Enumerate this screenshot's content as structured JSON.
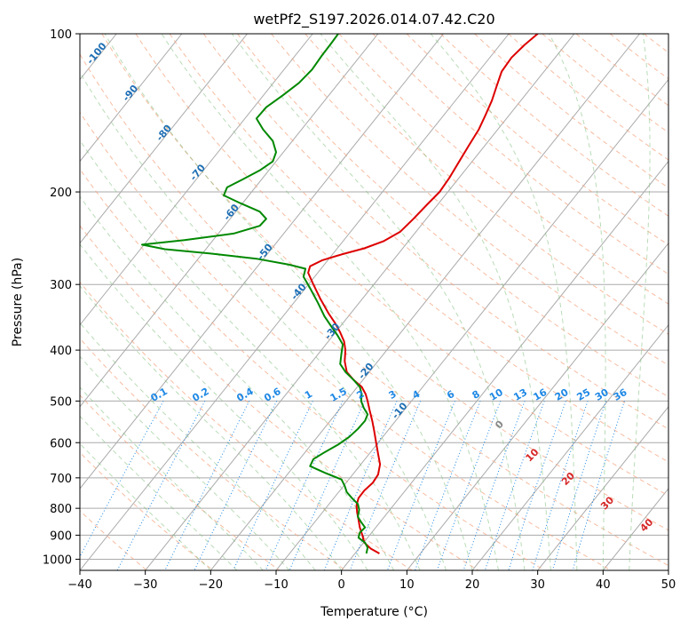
{
  "chart_data": {
    "type": "line",
    "title": "wetPf2_S197.2026.014.07.42.C20",
    "xlabel": "Temperature (°C)",
    "ylabel": "Pressure (hPa)",
    "xlim": [
      -40,
      50
    ],
    "ylim": [
      1050,
      100
    ],
    "y_scale": "log",
    "grid": true,
    "x_ticks": [
      -40,
      -30,
      -20,
      -10,
      0,
      10,
      20,
      30,
      40,
      50
    ],
    "y_ticks": [
      1000,
      900,
      800,
      700,
      600,
      500,
      400,
      300,
      200,
      100
    ],
    "series": [
      {
        "color": "#dd0000",
        "points": [
          [
            5.8,
            975
          ],
          [
            4.5,
            955
          ],
          [
            3.5,
            930
          ],
          [
            3.2,
            900
          ],
          [
            2.8,
            870
          ],
          [
            2.6,
            840
          ],
          [
            2.4,
            815
          ],
          [
            2.3,
            790
          ],
          [
            2.6,
            765
          ],
          [
            3.5,
            740
          ],
          [
            4.8,
            715
          ],
          [
            5.6,
            690
          ],
          [
            5.9,
            660
          ],
          [
            5.6,
            630
          ],
          [
            5.3,
            600
          ],
          [
            5.0,
            570
          ],
          [
            4.7,
            545
          ],
          [
            4.3,
            520
          ],
          [
            4.0,
            500
          ],
          [
            3.7,
            485
          ],
          [
            3.1,
            470
          ],
          [
            1.8,
            455
          ],
          [
            0.8,
            440
          ],
          [
            0.5,
            420
          ],
          [
            0.6,
            400
          ],
          [
            0.4,
            385
          ],
          [
            -0.2,
            370
          ],
          [
            -1.0,
            355
          ],
          [
            -2.0,
            340
          ],
          [
            -3.2,
            320
          ],
          [
            -4.3,
            300
          ],
          [
            -5.1,
            285
          ],
          [
            -4.8,
            277
          ],
          [
            -3.0,
            270
          ],
          [
            0.0,
            263
          ],
          [
            3.5,
            256
          ],
          [
            6.5,
            248
          ],
          [
            9.0,
            238
          ],
          [
            11.0,
            225
          ],
          [
            13.0,
            212
          ],
          [
            15.0,
            200
          ],
          [
            16.5,
            188
          ],
          [
            18.0,
            175
          ],
          [
            19.5,
            163
          ],
          [
            21.0,
            152
          ],
          [
            22.0,
            143
          ],
          [
            23.0,
            134
          ],
          [
            23.7,
            126
          ],
          [
            24.5,
            118
          ],
          [
            26.0,
            111
          ],
          [
            28.0,
            105
          ],
          [
            30.0,
            100
          ]
        ]
      },
      {
        "color": "#008800",
        "points": [
          [
            3.8,
            975
          ],
          [
            4.0,
            950
          ],
          [
            3.6,
            930
          ],
          [
            2.6,
            910
          ],
          [
            2.8,
            890
          ],
          [
            3.6,
            870
          ],
          [
            3.0,
            850
          ],
          [
            2.5,
            830
          ],
          [
            2.7,
            805
          ],
          [
            2.5,
            785
          ],
          [
            1.6,
            765
          ],
          [
            0.8,
            745
          ],
          [
            0.5,
            725
          ],
          [
            0.0,
            705
          ],
          [
            -2.5,
            685
          ],
          [
            -4.8,
            665
          ],
          [
            -4.3,
            645
          ],
          [
            -2.5,
            625
          ],
          [
            -0.5,
            605
          ],
          [
            1.2,
            585
          ],
          [
            2.5,
            565
          ],
          [
            3.6,
            545
          ],
          [
            4.0,
            530
          ],
          [
            3.4,
            515
          ],
          [
            3.0,
            500
          ],
          [
            3.1,
            485
          ],
          [
            2.8,
            470
          ],
          [
            1.8,
            455
          ],
          [
            0.6,
            440
          ],
          [
            -0.2,
            425
          ],
          [
            0.0,
            405
          ],
          [
            0.2,
            390
          ],
          [
            -0.6,
            375
          ],
          [
            -1.6,
            360
          ],
          [
            -2.6,
            345
          ],
          [
            -3.6,
            325
          ],
          [
            -4.8,
            305
          ],
          [
            -5.8,
            290
          ],
          [
            -5.5,
            280
          ],
          [
            -8.0,
            275
          ],
          [
            -13.0,
            268
          ],
          [
            -20.0,
            262
          ],
          [
            -27.0,
            257
          ],
          [
            -30.5,
            252
          ],
          [
            -24.0,
            247
          ],
          [
            -16.5,
            240
          ],
          [
            -12.5,
            232
          ],
          [
            -11.5,
            225
          ],
          [
            -12.5,
            218
          ],
          [
            -15.5,
            210
          ],
          [
            -18.0,
            203
          ],
          [
            -17.5,
            196
          ],
          [
            -15.0,
            189
          ],
          [
            -12.5,
            182
          ],
          [
            -10.5,
            175
          ],
          [
            -10.0,
            168
          ],
          [
            -10.5,
            160
          ],
          [
            -12.0,
            152
          ],
          [
            -13.0,
            145
          ],
          [
            -11.5,
            138
          ],
          [
            -9.0,
            131
          ],
          [
            -6.5,
            124
          ],
          [
            -4.5,
            117
          ],
          [
            -3.0,
            110
          ],
          [
            -1.5,
            104
          ],
          [
            -0.5,
            100
          ]
        ]
      }
    ],
    "dry_adiabat_labels": [
      "-100",
      "-90",
      "-80",
      "-70",
      "-60",
      "-50",
      "-40",
      "-30",
      "-20",
      "-10"
    ],
    "mixing_ratio_labels": [
      "0.1",
      "0.2",
      "0.4",
      "0.6",
      "1",
      "1.5",
      "2",
      "3",
      "4",
      "6",
      "8",
      "10",
      "13",
      "16",
      "20",
      "25",
      "30",
      "36"
    ],
    "moist_adiabat_labels": [
      "0",
      "10",
      "20",
      "30",
      "40"
    ],
    "colors": {
      "isotherm": "#aaaaaa",
      "dry_adiabat": "#f4a582",
      "moist_adiabat": "#7fbf7b",
      "mixing_ratio": "#1e88e5",
      "dry_label": "#1f6fb4",
      "mixing_label": "#1e88e5",
      "moist_label": "#d62728",
      "zero_label": "#888888"
    }
  }
}
